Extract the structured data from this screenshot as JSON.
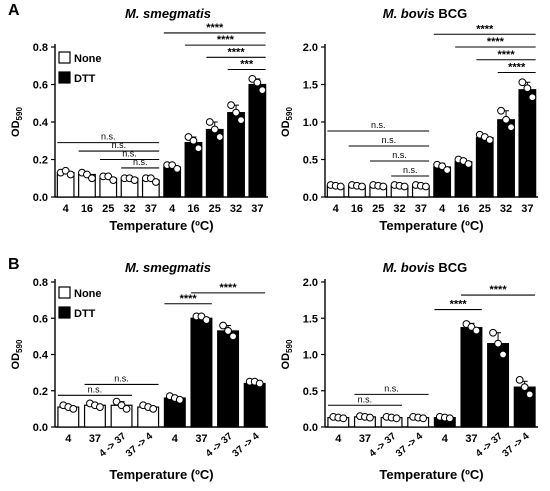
{
  "panels": [
    {
      "letter": "A"
    },
    {
      "letter": "B"
    }
  ],
  "legend": {
    "none_label": "None",
    "dtt_label": "DTT"
  },
  "ylabel_main": "OD",
  "ylabel_sub": "590",
  "xlabel": "Temperature (ºC)",
  "chart_data": [
    {
      "type": "bar",
      "panel": "A",
      "title_italic": "M. smegmatis",
      "title_rest": "",
      "categories": [
        "4",
        "16",
        "25",
        "32",
        "37",
        "4",
        "16",
        "25",
        "32",
        "37"
      ],
      "groups": [
        "None",
        "None",
        "None",
        "None",
        "None",
        "DTT",
        "DTT",
        "DTT",
        "DTT",
        "DTT"
      ],
      "values": [
        0.13,
        0.12,
        0.1,
        0.1,
        0.09,
        0.16,
        0.29,
        0.36,
        0.45,
        0.6
      ],
      "errors": [
        0.01,
        0.01,
        0.01,
        0.01,
        0.01,
        0.01,
        0.03,
        0.04,
        0.04,
        0.03
      ],
      "points": [
        [
          0.13,
          0.14,
          0.12
        ],
        [
          0.13,
          0.12,
          0.1
        ],
        [
          0.11,
          0.11,
          0.09
        ],
        [
          0.1,
          0.1,
          0.09
        ],
        [
          0.1,
          0.1,
          0.08
        ],
        [
          0.17,
          0.17,
          0.15
        ],
        [
          0.32,
          0.3,
          0.26
        ],
        [
          0.4,
          0.36,
          0.32
        ],
        [
          0.49,
          0.45,
          0.41
        ],
        [
          0.63,
          0.61,
          0.57
        ]
      ],
      "ylim": [
        0,
        0.8
      ],
      "yticks": [
        0.0,
        0.2,
        0.4,
        0.6,
        0.8
      ],
      "ytick_labels": [
        "0.0",
        "0.2",
        "0.4",
        "0.6",
        "0.8"
      ],
      "legend": true,
      "sig": [
        {
          "from": 0,
          "to": 4,
          "label": "n.s.",
          "y": 0.29
        },
        {
          "from": 1,
          "to": 4,
          "label": "n.s.",
          "y": 0.245
        },
        {
          "from": 2,
          "to": 4,
          "label": "n.s.",
          "y": 0.2
        },
        {
          "from": 3,
          "to": 4,
          "label": "n.s.",
          "y": 0.155
        },
        {
          "from": 5,
          "to": 9,
          "label": "****",
          "y": 0.875
        },
        {
          "from": 6,
          "to": 9,
          "label": "****",
          "y": 0.81
        },
        {
          "from": 7,
          "to": 9,
          "label": "****",
          "y": 0.745
        },
        {
          "from": 8,
          "to": 9,
          "label": "***",
          "y": 0.68
        }
      ]
    },
    {
      "type": "bar",
      "panel": "A",
      "title_italic": "M. bovis",
      "title_rest": " BCG",
      "categories": [
        "4",
        "16",
        "25",
        "32",
        "37",
        "4",
        "16",
        "25",
        "32",
        "37"
      ],
      "groups": [
        "None",
        "None",
        "None",
        "None",
        "None",
        "DTT",
        "DTT",
        "DTT",
        "DTT",
        "DTT"
      ],
      "values": [
        0.15,
        0.15,
        0.15,
        0.15,
        0.15,
        0.4,
        0.47,
        0.79,
        1.03,
        1.43
      ],
      "errors": [
        0.01,
        0.01,
        0.01,
        0.01,
        0.01,
        0.05,
        0.04,
        0.04,
        0.12,
        0.1
      ],
      "points": [
        [
          0.16,
          0.15,
          0.14
        ],
        [
          0.16,
          0.15,
          0.14
        ],
        [
          0.16,
          0.15,
          0.14
        ],
        [
          0.16,
          0.15,
          0.14
        ],
        [
          0.16,
          0.15,
          0.14
        ],
        [
          0.43,
          0.41,
          0.36
        ],
        [
          0.5,
          0.48,
          0.44
        ],
        [
          0.83,
          0.8,
          0.76
        ],
        [
          1.15,
          1.03,
          0.93
        ],
        [
          1.53,
          1.45,
          1.33
        ]
      ],
      "ylim": [
        0,
        2.0
      ],
      "yticks": [
        0.0,
        0.5,
        1.0,
        1.5,
        2.0
      ],
      "ytick_labels": [
        "0.0",
        "0.5",
        "1.0",
        "1.5",
        "2.0"
      ],
      "legend": false,
      "sig": [
        {
          "from": 0,
          "to": 4,
          "label": "n.s.",
          "y": 0.88
        },
        {
          "from": 1,
          "to": 4,
          "label": "n.s.",
          "y": 0.68
        },
        {
          "from": 2,
          "to": 4,
          "label": "n.s.",
          "y": 0.48
        },
        {
          "from": 3,
          "to": 4,
          "label": "n.s.",
          "y": 0.28
        },
        {
          "from": 5,
          "to": 9,
          "label": "****",
          "y": 2.17
        },
        {
          "from": 6,
          "to": 9,
          "label": "****",
          "y": 2.0
        },
        {
          "from": 7,
          "to": 9,
          "label": "****",
          "y": 1.83
        },
        {
          "from": 8,
          "to": 9,
          "label": "****",
          "y": 1.66
        }
      ]
    },
    {
      "type": "bar",
      "panel": "B",
      "title_italic": "M. smegmatis",
      "title_rest": "",
      "categories": [
        "4",
        "37",
        "4 -> 37",
        "37 -> 4",
        "4",
        "37",
        "4 -> 37",
        "37 -> 4"
      ],
      "groups": [
        "None",
        "None",
        "None",
        "None",
        "DTT",
        "DTT",
        "DTT",
        "DTT"
      ],
      "values": [
        0.11,
        0.12,
        0.12,
        0.11,
        0.16,
        0.6,
        0.53,
        0.24
      ],
      "errors": [
        0.01,
        0.01,
        0.02,
        0.01,
        0.01,
        0.01,
        0.03,
        0.01
      ],
      "points": [
        [
          0.12,
          0.11,
          0.1
        ],
        [
          0.13,
          0.12,
          0.11
        ],
        [
          0.14,
          0.12,
          0.1
        ],
        [
          0.12,
          0.11,
          0.1
        ],
        [
          0.17,
          0.16,
          0.15
        ],
        [
          0.61,
          0.61,
          0.59
        ],
        [
          0.56,
          0.53,
          0.5
        ],
        [
          0.25,
          0.25,
          0.24
        ]
      ],
      "ylim": [
        0,
        0.8
      ],
      "yticks": [
        0.0,
        0.2,
        0.4,
        0.6,
        0.8
      ],
      "ytick_labels": [
        "0.0",
        "0.2",
        "0.4",
        "0.6",
        "0.8"
      ],
      "legend": true,
      "sig": [
        {
          "from": 0,
          "to": 2,
          "label": "n.s.",
          "y": 0.175
        },
        {
          "from": 1,
          "to": 3,
          "label": "n.s.",
          "y": 0.235
        },
        {
          "from": 4,
          "to": 5,
          "label": "****",
          "y": 0.68
        },
        {
          "from": 5,
          "to": 7,
          "label": "****",
          "y": 0.74
        }
      ]
    },
    {
      "type": "bar",
      "panel": "B",
      "title_italic": "M. bovis",
      "title_rest": " BCG",
      "categories": [
        "4",
        "37",
        "4 -> 37",
        "37 -> 4",
        "4",
        "37",
        "4 -> 37",
        "37 -> 4"
      ],
      "groups": [
        "None",
        "None",
        "None",
        "None",
        "DTT",
        "DTT",
        "DTT",
        "DTT"
      ],
      "values": [
        0.13,
        0.14,
        0.13,
        0.13,
        0.13,
        1.37,
        1.15,
        0.55
      ],
      "errors": [
        0.01,
        0.01,
        0.01,
        0.01,
        0.01,
        0.06,
        0.15,
        0.08
      ],
      "points": [
        [
          0.14,
          0.13,
          0.12
        ],
        [
          0.15,
          0.14,
          0.13
        ],
        [
          0.14,
          0.13,
          0.12
        ],
        [
          0.14,
          0.13,
          0.12
        ],
        [
          0.14,
          0.13,
          0.12
        ],
        [
          1.42,
          1.38,
          1.33
        ],
        [
          1.3,
          1.15,
          1.0
        ],
        [
          0.65,
          0.55,
          0.45
        ]
      ],
      "ylim": [
        0,
        2.0
      ],
      "yticks": [
        0.0,
        0.5,
        1.0,
        1.5,
        2.0
      ],
      "ytick_labels": [
        "0.0",
        "0.5",
        "1.0",
        "1.5",
        "2.0"
      ],
      "legend": false,
      "sig": [
        {
          "from": 0,
          "to": 2,
          "label": "n.s.",
          "y": 0.3
        },
        {
          "from": 1,
          "to": 3,
          "label": "n.s.",
          "y": 0.45
        },
        {
          "from": 4,
          "to": 5,
          "label": "****",
          "y": 1.62
        },
        {
          "from": 5,
          "to": 7,
          "label": "****",
          "y": 1.82
        }
      ]
    }
  ]
}
